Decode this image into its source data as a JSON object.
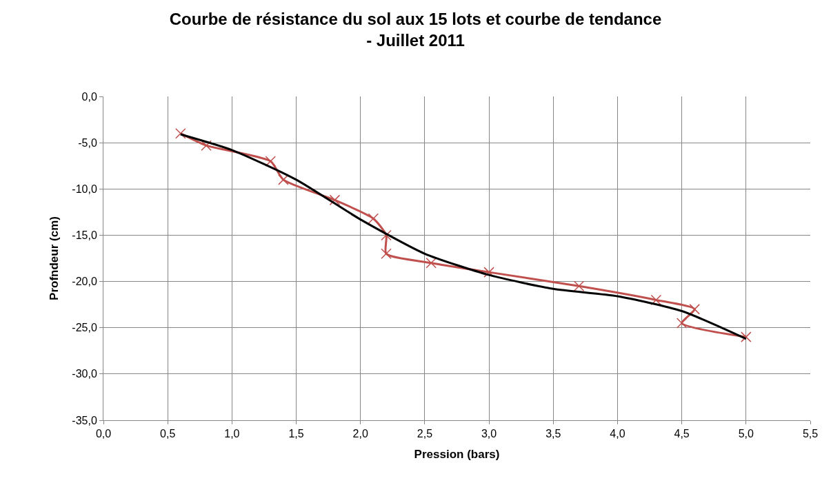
{
  "chart_data": {
    "type": "line",
    "title": "Courbe de résistance du sol aux 15 lots et courbe de tendance\n- Juillet 2011",
    "xlabel": "Pression (bars)",
    "ylabel": "Profndeur (cm)",
    "xlim": [
      0,
      5.5
    ],
    "xticks": [
      {
        "value": 0,
        "label": "0,0"
      },
      {
        "value": 0.5,
        "label": "0,5"
      },
      {
        "value": 1,
        "label": "1,0"
      },
      {
        "value": 1.5,
        "label": "1,5"
      },
      {
        "value": 2,
        "label": "2,0"
      },
      {
        "value": 2.5,
        "label": "2,5"
      },
      {
        "value": 3,
        "label": "3,0"
      },
      {
        "value": 3.5,
        "label": "3,5"
      },
      {
        "value": 4,
        "label": "4,0"
      },
      {
        "value": 4.5,
        "label": "4,5"
      },
      {
        "value": 5,
        "label": "5,0"
      },
      {
        "value": 5.5,
        "label": "5,5"
      }
    ],
    "ylim": [
      -35,
      0
    ],
    "yticks": [
      {
        "value": 0,
        "label": "0,0"
      },
      {
        "value": -5,
        "label": "-5,0"
      },
      {
        "value": -10,
        "label": "-10,0"
      },
      {
        "value": -15,
        "label": "-15,0"
      },
      {
        "value": -20,
        "label": "-20,0"
      },
      {
        "value": -25,
        "label": "-25,0"
      },
      {
        "value": -30,
        "label": "-30,0"
      },
      {
        "value": -35,
        "label": "-35,0"
      }
    ],
    "grid": true,
    "series": [
      {
        "color": "#c0504d",
        "marker": "cross",
        "x": [
          0.6,
          0.8,
          1.3,
          1.4,
          1.8,
          2.1,
          2.2,
          2.2,
          2.55,
          3.0,
          3.7,
          4.3,
          4.6,
          4.5,
          5.0
        ],
        "values": [
          -4.0,
          -5.3,
          -7.0,
          -9.0,
          -11.2,
          -13.2,
          -15.0,
          -17.0,
          -18.0,
          -19.0,
          -20.5,
          -22.0,
          -23.0,
          -24.5,
          -26.0
        ]
      },
      {
        "color": "#000000",
        "marker": "none",
        "x": [
          0.6,
          1.0,
          1.5,
          2.0,
          2.5,
          3.0,
          3.5,
          4.0,
          4.5,
          5.0
        ],
        "values": [
          -4.1,
          -5.8,
          -9.0,
          -13.3,
          -17.0,
          -19.3,
          -20.8,
          -21.6,
          -23.2,
          -26.2
        ]
      }
    ]
  }
}
